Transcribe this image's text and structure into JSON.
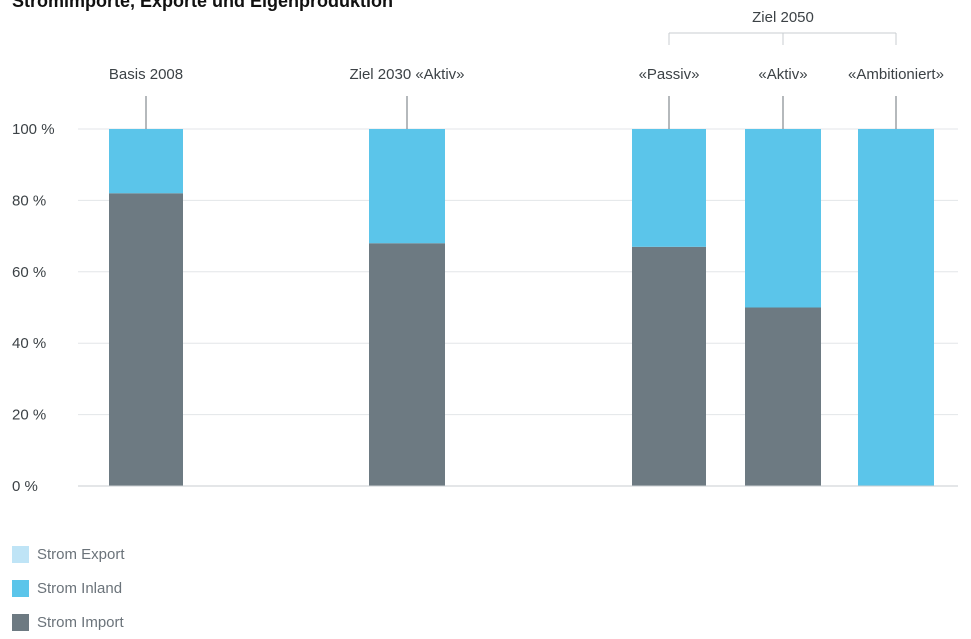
{
  "title": "Stromimporte, Exporte und Eigenproduktion",
  "chart_data": {
    "type": "bar",
    "stacked": true,
    "group_label": "Ziel 2050",
    "categories": [
      "Basis 2008",
      "Ziel 2030 «Aktiv»",
      "«Passiv»",
      "«Aktiv»",
      "«Ambitioniert»"
    ],
    "series": [
      {
        "name": "Strom Import",
        "color": "#6d7a82",
        "values": [
          82,
          68,
          67,
          50,
          0
        ]
      },
      {
        "name": "Strom Inland",
        "color": "#5bc5ea",
        "values": [
          18,
          32,
          33,
          50,
          100
        ]
      },
      {
        "name": "Strom Export",
        "color": "#bfe4f6",
        "values": [
          0,
          0,
          0,
          0,
          0
        ]
      }
    ],
    "yticks": [
      "0 %",
      "20 %",
      "40 %",
      "60 %",
      "80 %",
      "100 %"
    ],
    "ylim": [
      0,
      100
    ],
    "grid": true,
    "legend_position": "bottom-left"
  },
  "legend": [
    {
      "label": "Strom Export",
      "color": "#bfe4f6"
    },
    {
      "label": "Strom Inland",
      "color": "#5bc5ea"
    },
    {
      "label": "Strom Import",
      "color": "#6d7a82"
    }
  ]
}
